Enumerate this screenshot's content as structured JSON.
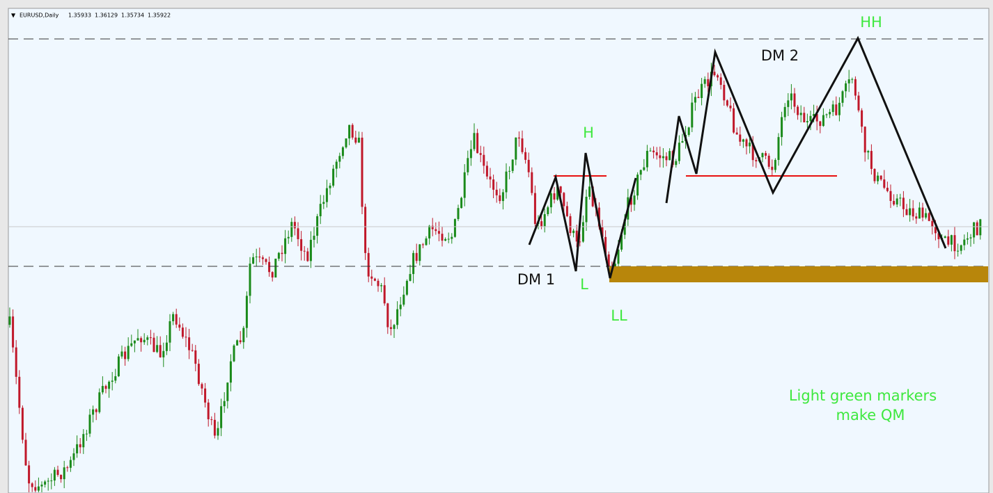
{
  "header": {
    "symbol": "EURUSD,Daily",
    "open": "1.35933",
    "high": "1.36129",
    "low": "1.35734",
    "close": "1.35922"
  },
  "annotations": {
    "hh": "HH",
    "dm2": "DM 2",
    "h": "H",
    "l": "L",
    "dm1": "DM 1",
    "ll": "LL"
  },
  "note": [
    "Light green markers",
    "make QM"
  ]
}
